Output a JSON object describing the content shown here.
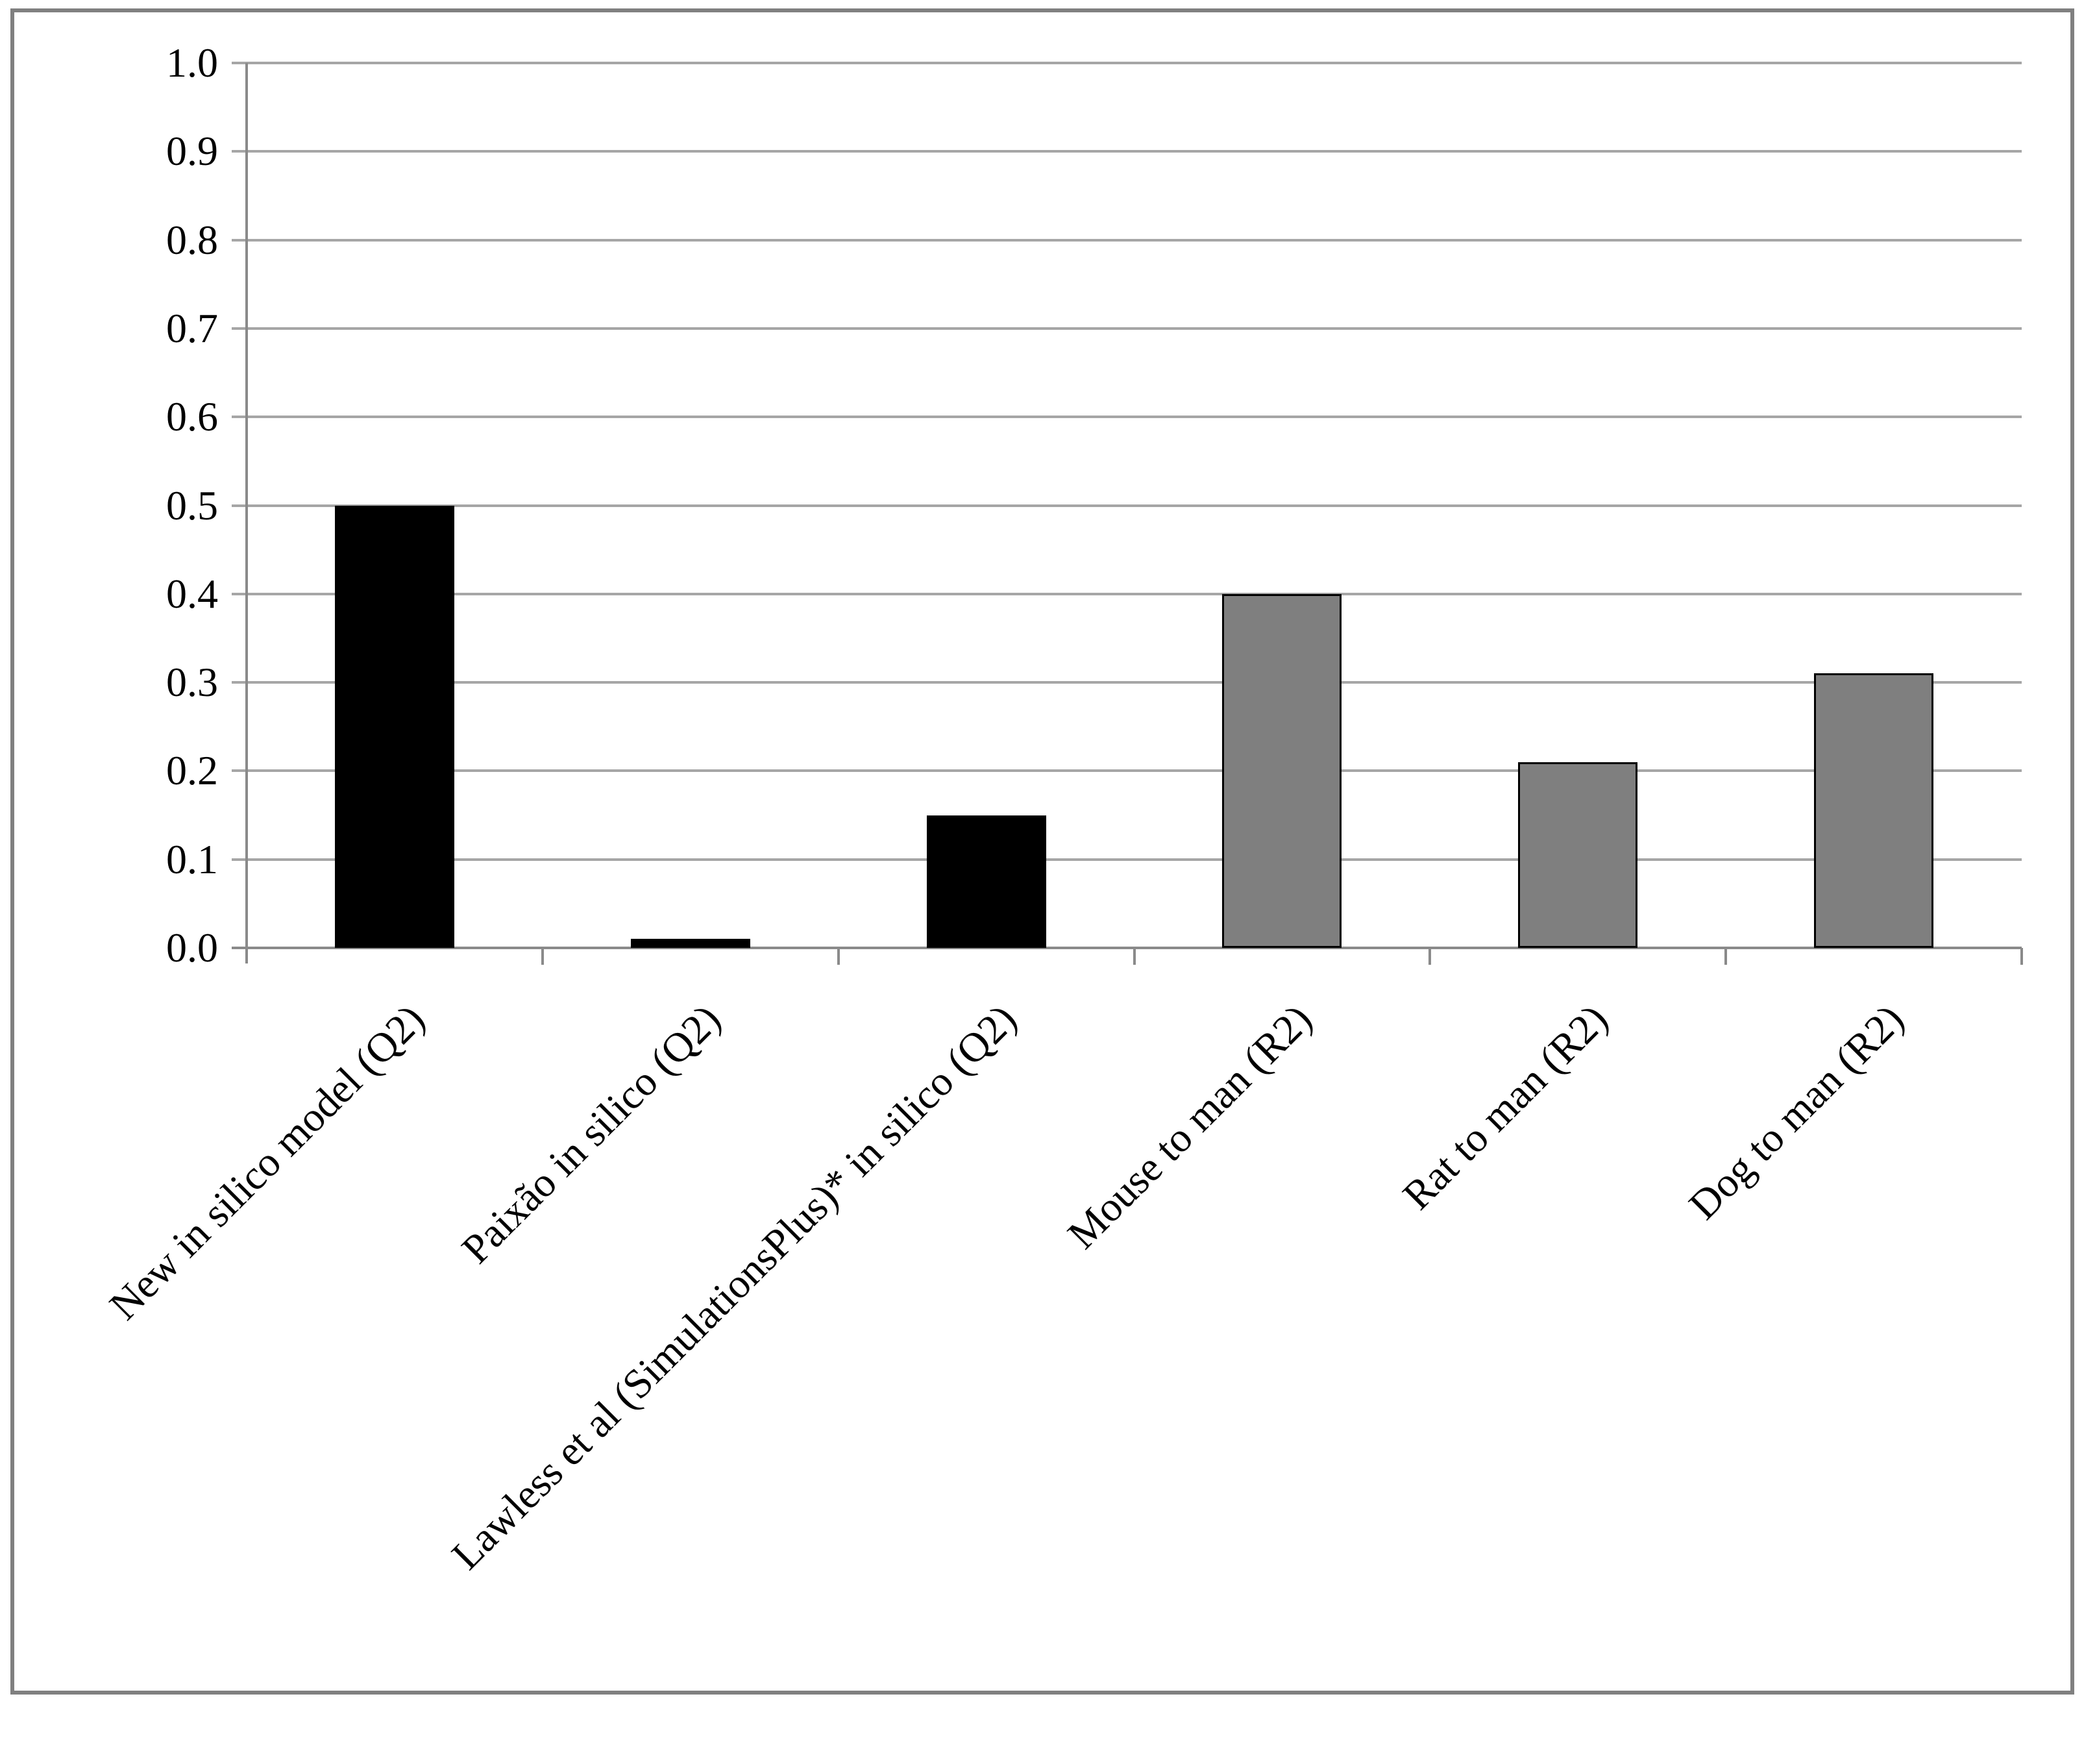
{
  "figure": {
    "background": "#ffffff",
    "outer_border_color": "#808080"
  },
  "chart_data": {
    "type": "bar",
    "title": "",
    "xlabel": "",
    "ylabel": "",
    "categories": [
      "New in silico model (Q2)",
      "Paixão in silico (Q2)",
      "Lawless et al (SimulationsPlus)* in silico (Q2)",
      "Mouse to man (R2)",
      "Rat to man (R2)",
      "Dog to man (R2)"
    ],
    "values": [
      0.5,
      0.01,
      0.15,
      0.4,
      0.21,
      0.31
    ],
    "bar_fill_colors": [
      "#000000",
      "#000000",
      "#000000",
      "#7f7f7f",
      "#7f7f7f",
      "#7f7f7f"
    ],
    "bar_outline_colors": [
      "#000000",
      "#000000",
      "#000000",
      "#000000",
      "#000000",
      "#000000"
    ],
    "ylim": [
      0.0,
      1.0
    ],
    "ytick_step": 0.1,
    "ytick_labels": [
      "0.0",
      "0.1",
      "0.2",
      "0.3",
      "0.4",
      "0.5",
      "0.6",
      "0.7",
      "0.8",
      "0.9",
      "1.0"
    ],
    "xtick_label_rotation_deg": 45,
    "grid": true,
    "gridline_color": "#a6a6a6",
    "axis_color": "#8a8a8a",
    "legend": "none"
  }
}
